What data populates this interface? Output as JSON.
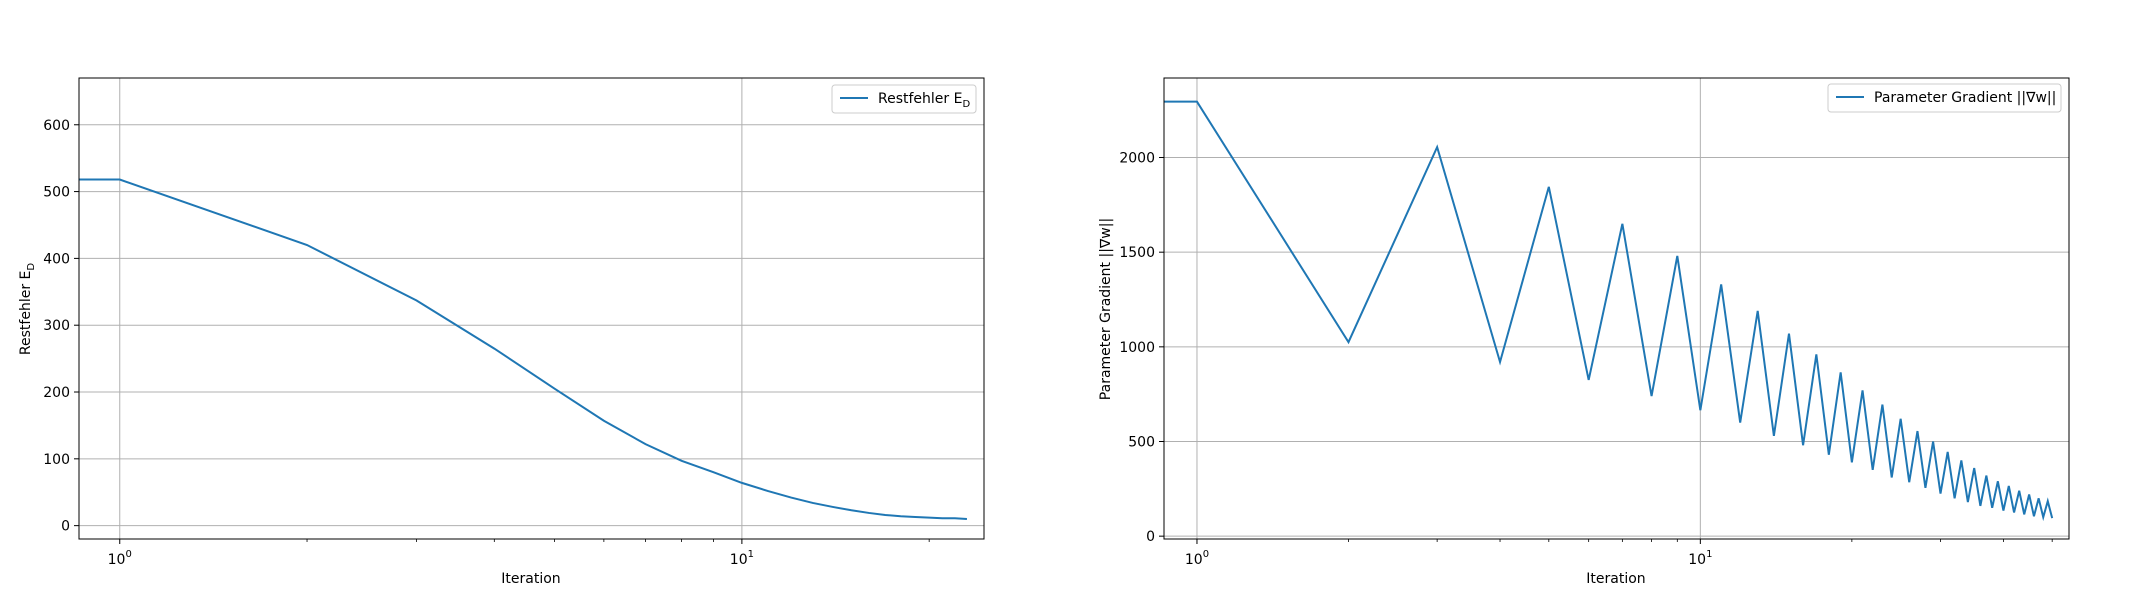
{
  "colors": {
    "line": "#1f77b4",
    "grid": "#b0b0b0",
    "axes": "#000000",
    "legend_border": "#cccccc"
  },
  "chart_data": [
    {
      "type": "line",
      "xscale": "log",
      "xlim": [
        0.86,
        24.5
      ],
      "ylim": [
        -20,
        670
      ],
      "xlabel": "Iteration",
      "ylabel_main": "Restfehler E",
      "ylabel_sub": "D",
      "grid": true,
      "legend_position": "top-right",
      "x_ticks": [
        1,
        10
      ],
      "x_tick_labels": [
        {
          "base": "10",
          "exp": "0"
        },
        {
          "base": "10",
          "exp": "1"
        }
      ],
      "y_ticks": [
        0,
        100,
        200,
        300,
        400,
        500,
        600
      ],
      "y_tick_labels": [
        "0",
        "100",
        "200",
        "300",
        "400",
        "500",
        "600"
      ],
      "series": [
        {
          "name_main": "Restfehler E",
          "name_sub": "D",
          "x": [
            0.86,
            1,
            2,
            3,
            4,
            5,
            6,
            7,
            8,
            9,
            10,
            11,
            12,
            13,
            14,
            15,
            16,
            17,
            18,
            19,
            20,
            21,
            22,
            23
          ],
          "values": [
            518,
            518,
            420,
            337,
            265,
            205,
            157,
            122,
            97,
            80,
            64,
            52,
            42,
            34,
            28,
            23,
            19,
            16,
            14,
            13,
            12,
            11,
            11,
            10
          ]
        }
      ]
    },
    {
      "type": "line",
      "xscale": "log",
      "xlim": [
        0.86,
        54
      ],
      "ylim": [
        -15,
        2420
      ],
      "xlabel": "Iteration",
      "ylabel_main": "Parameter Gradient ||∇w||",
      "ylabel_sub": "",
      "grid": true,
      "legend_position": "top-right",
      "x_ticks": [
        1,
        10
      ],
      "x_tick_labels": [
        {
          "base": "10",
          "exp": "0"
        },
        {
          "base": "10",
          "exp": "1"
        }
      ],
      "y_ticks": [
        0,
        500,
        1000,
        1500,
        2000
      ],
      "y_tick_labels": [
        "0",
        "500",
        "1000",
        "1500",
        "2000"
      ],
      "series": [
        {
          "name_main": "Parameter Gradient ||∇w||",
          "name_sub": "",
          "x": [
            0.86,
            1,
            2,
            3,
            4,
            5,
            6,
            7,
            8,
            9,
            10,
            11,
            12,
            13,
            14,
            15,
            16,
            17,
            18,
            19,
            20,
            21,
            22,
            23,
            24,
            25,
            26,
            27,
            28,
            29,
            30,
            31,
            32,
            33,
            34,
            35,
            36,
            37,
            38,
            39,
            40,
            41,
            42,
            43,
            44,
            45,
            46,
            47,
            48,
            49,
            50
          ],
          "values": [
            2295,
            2295,
            1025,
            2055,
            920,
            1845,
            825,
            1650,
            740,
            1480,
            665,
            1330,
            600,
            1190,
            530,
            1070,
            480,
            960,
            430,
            865,
            390,
            770,
            350,
            695,
            310,
            620,
            285,
            555,
            255,
            500,
            225,
            445,
            200,
            400,
            180,
            360,
            160,
            320,
            150,
            290,
            135,
            265,
            125,
            240,
            115,
            220,
            105,
            200,
            100,
            185,
            95
          ]
        }
      ]
    }
  ]
}
